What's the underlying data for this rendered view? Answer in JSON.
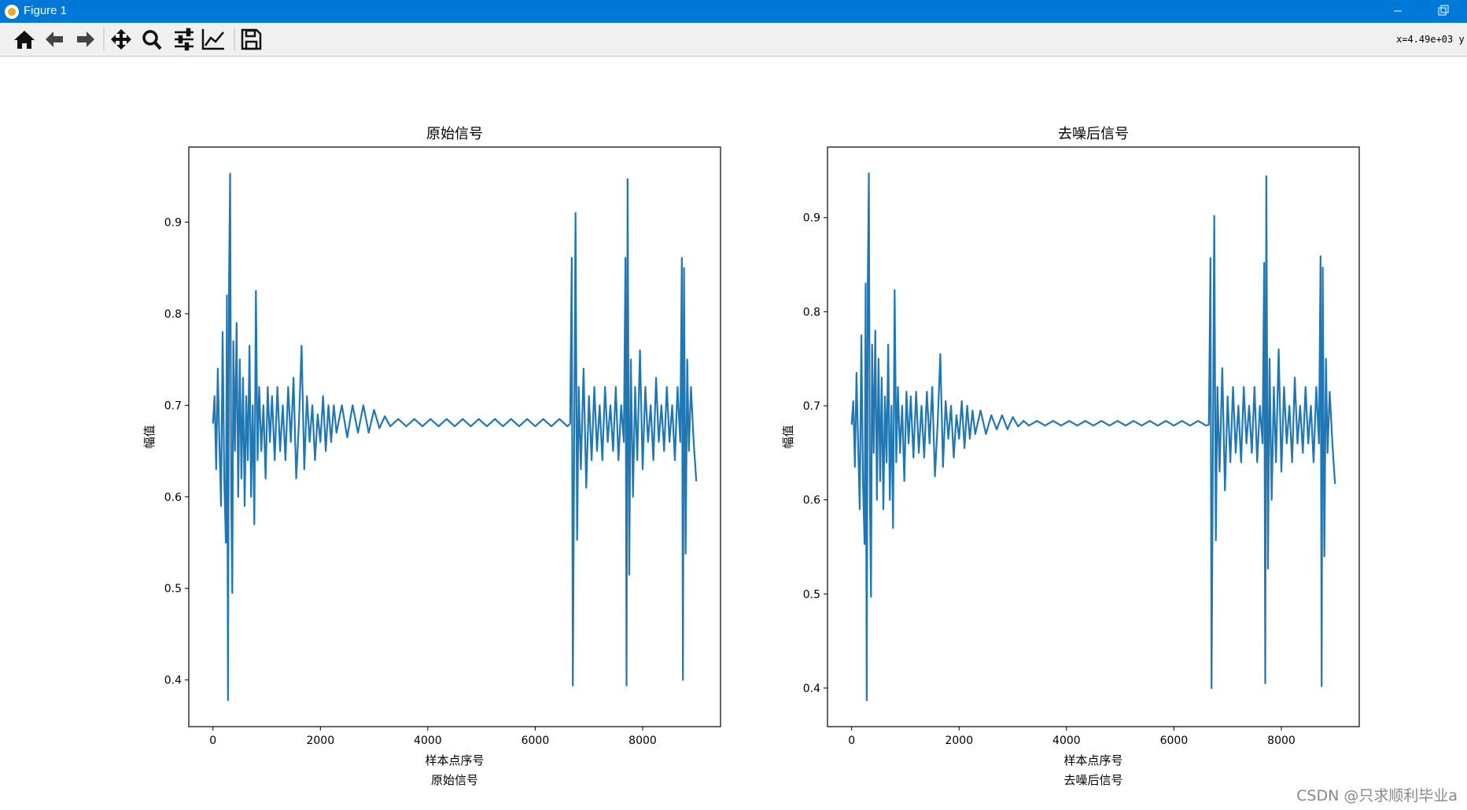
{
  "window": {
    "title": "Figure 1",
    "status": "x=4.49e+03 y"
  },
  "watermark": "CSDN @只求顺利毕业a",
  "chart_data": [
    {
      "type": "line",
      "title": "原始信号",
      "xlabel": "样本点序号",
      "ylabel": "幅值",
      "caption": "原始信号",
      "color": "#1f77b4",
      "xlim": [
        -450,
        9450
      ],
      "ylim": [
        0.349,
        0.982
      ],
      "xticks": [
        0,
        2000,
        4000,
        6000,
        8000
      ],
      "yticks": [
        0.4,
        0.5,
        0.6,
        0.7,
        0.8,
        0.9
      ],
      "x": [
        0,
        30,
        60,
        90,
        120,
        150,
        180,
        210,
        240,
        260,
        280,
        300,
        320,
        340,
        360,
        380,
        410,
        440,
        470,
        500,
        530,
        560,
        590,
        620,
        650,
        680,
        710,
        740,
        770,
        800,
        830,
        860,
        900,
        940,
        980,
        1020,
        1060,
        1100,
        1150,
        1200,
        1250,
        1300,
        1350,
        1400,
        1450,
        1500,
        1550,
        1600,
        1650,
        1700,
        1750,
        1800,
        1850,
        1900,
        1950,
        2000,
        2050,
        2100,
        2150,
        2200,
        2250,
        2300,
        2400,
        2500,
        2600,
        2700,
        2800,
        2900,
        3000,
        3100,
        3200,
        3300,
        3450,
        3600,
        3750,
        3900,
        4050,
        4200,
        4350,
        4500,
        4650,
        4800,
        4950,
        5100,
        5250,
        5400,
        5550,
        5700,
        5850,
        6000,
        6150,
        6300,
        6450,
        6600,
        6650,
        6680,
        6700,
        6730,
        6750,
        6780,
        6810,
        6850,
        6900,
        6950,
        7000,
        7050,
        7100,
        7150,
        7200,
        7250,
        7300,
        7350,
        7400,
        7450,
        7500,
        7550,
        7600,
        7650,
        7680,
        7700,
        7720,
        7750,
        7780,
        7820,
        7860,
        7900,
        7950,
        8000,
        8050,
        8100,
        8150,
        8200,
        8250,
        8300,
        8350,
        8400,
        8450,
        8500,
        8550,
        8600,
        8650,
        8700,
        8730,
        8750,
        8770,
        8800,
        8830,
        8860,
        8900,
        8950,
        8999
      ],
      "values": [
        0.68,
        0.71,
        0.63,
        0.74,
        0.66,
        0.59,
        0.78,
        0.62,
        0.55,
        0.82,
        0.378,
        0.84,
        0.953,
        0.6,
        0.495,
        0.77,
        0.65,
        0.79,
        0.6,
        0.75,
        0.62,
        0.73,
        0.59,
        0.71,
        0.64,
        0.765,
        0.6,
        0.7,
        0.57,
        0.825,
        0.64,
        0.72,
        0.65,
        0.7,
        0.62,
        0.72,
        0.66,
        0.71,
        0.64,
        0.72,
        0.65,
        0.7,
        0.64,
        0.72,
        0.66,
        0.73,
        0.62,
        0.68,
        0.765,
        0.63,
        0.71,
        0.66,
        0.7,
        0.64,
        0.69,
        0.66,
        0.71,
        0.65,
        0.7,
        0.66,
        0.7,
        0.67,
        0.7,
        0.665,
        0.7,
        0.67,
        0.7,
        0.67,
        0.695,
        0.675,
        0.688,
        0.677,
        0.685,
        0.677,
        0.685,
        0.677,
        0.685,
        0.677,
        0.685,
        0.677,
        0.685,
        0.677,
        0.685,
        0.677,
        0.685,
        0.677,
        0.685,
        0.677,
        0.685,
        0.677,
        0.685,
        0.677,
        0.685,
        0.677,
        0.68,
        0.861,
        0.394,
        0.7,
        0.91,
        0.553,
        0.72,
        0.63,
        0.74,
        0.61,
        0.71,
        0.64,
        0.72,
        0.65,
        0.7,
        0.64,
        0.72,
        0.66,
        0.7,
        0.65,
        0.72,
        0.64,
        0.7,
        0.66,
        0.861,
        0.394,
        0.947,
        0.515,
        0.75,
        0.6,
        0.72,
        0.64,
        0.76,
        0.63,
        0.72,
        0.66,
        0.7,
        0.64,
        0.73,
        0.66,
        0.7,
        0.65,
        0.72,
        0.66,
        0.7,
        0.64,
        0.72,
        0.66,
        0.861,
        0.4,
        0.85,
        0.538,
        0.75,
        0.65,
        0.72,
        0.66,
        0.617
      ]
    },
    {
      "type": "line",
      "title": "去噪后信号",
      "xlabel": "样本点序号",
      "ylabel": "幅值",
      "caption": "去噪后信号",
      "color": "#1f77b4",
      "xlim": [
        -450,
        9450
      ],
      "ylim": [
        0.359,
        0.975
      ],
      "xticks": [
        0,
        2000,
        4000,
        6000,
        8000
      ],
      "yticks": [
        0.4,
        0.5,
        0.6,
        0.7,
        0.8,
        0.9
      ],
      "x": [
        0,
        30,
        60,
        90,
        120,
        150,
        180,
        210,
        240,
        260,
        280,
        300,
        320,
        340,
        360,
        380,
        410,
        440,
        470,
        500,
        530,
        560,
        590,
        620,
        650,
        680,
        710,
        740,
        770,
        800,
        830,
        860,
        900,
        940,
        980,
        1020,
        1060,
        1100,
        1150,
        1200,
        1250,
        1300,
        1350,
        1400,
        1450,
        1500,
        1550,
        1600,
        1650,
        1700,
        1750,
        1800,
        1850,
        1900,
        1950,
        2000,
        2050,
        2100,
        2150,
        2200,
        2250,
        2300,
        2400,
        2500,
        2600,
        2700,
        2800,
        2900,
        3000,
        3100,
        3200,
        3300,
        3450,
        3600,
        3750,
        3900,
        4050,
        4200,
        4350,
        4500,
        4650,
        4800,
        4950,
        5100,
        5250,
        5400,
        5550,
        5700,
        5850,
        6000,
        6150,
        6300,
        6450,
        6600,
        6650,
        6680,
        6700,
        6730,
        6750,
        6780,
        6810,
        6850,
        6900,
        6950,
        7000,
        7050,
        7100,
        7150,
        7200,
        7250,
        7300,
        7350,
        7400,
        7450,
        7500,
        7550,
        7600,
        7650,
        7680,
        7700,
        7720,
        7750,
        7780,
        7820,
        7860,
        7900,
        7950,
        8000,
        8050,
        8100,
        8150,
        8200,
        8250,
        8300,
        8350,
        8400,
        8450,
        8500,
        8550,
        8600,
        8650,
        8700,
        8730,
        8750,
        8770,
        8800,
        8830,
        8860,
        8900,
        8950,
        8999
      ],
      "values": [
        0.68,
        0.705,
        0.635,
        0.735,
        0.66,
        0.59,
        0.775,
        0.62,
        0.553,
        0.83,
        0.387,
        0.83,
        0.947,
        0.6,
        0.497,
        0.765,
        0.65,
        0.78,
        0.6,
        0.75,
        0.62,
        0.73,
        0.59,
        0.71,
        0.64,
        0.765,
        0.6,
        0.7,
        0.57,
        0.823,
        0.64,
        0.72,
        0.65,
        0.7,
        0.62,
        0.715,
        0.66,
        0.71,
        0.645,
        0.715,
        0.65,
        0.7,
        0.645,
        0.715,
        0.66,
        0.72,
        0.625,
        0.68,
        0.755,
        0.635,
        0.705,
        0.665,
        0.7,
        0.645,
        0.69,
        0.665,
        0.705,
        0.655,
        0.7,
        0.665,
        0.695,
        0.67,
        0.695,
        0.67,
        0.69,
        0.675,
        0.69,
        0.675,
        0.688,
        0.678,
        0.684,
        0.679,
        0.684,
        0.679,
        0.684,
        0.679,
        0.684,
        0.679,
        0.684,
        0.679,
        0.684,
        0.679,
        0.684,
        0.679,
        0.684,
        0.679,
        0.684,
        0.679,
        0.684,
        0.679,
        0.684,
        0.679,
        0.684,
        0.679,
        0.68,
        0.857,
        0.4,
        0.7,
        0.902,
        0.557,
        0.72,
        0.63,
        0.74,
        0.61,
        0.71,
        0.64,
        0.72,
        0.65,
        0.7,
        0.64,
        0.72,
        0.66,
        0.7,
        0.65,
        0.72,
        0.64,
        0.7,
        0.66,
        0.852,
        0.405,
        0.944,
        0.527,
        0.75,
        0.6,
        0.72,
        0.64,
        0.76,
        0.63,
        0.72,
        0.66,
        0.7,
        0.64,
        0.73,
        0.66,
        0.7,
        0.65,
        0.72,
        0.66,
        0.7,
        0.64,
        0.72,
        0.66,
        0.859,
        0.402,
        0.847,
        0.54,
        0.75,
        0.65,
        0.715,
        0.66,
        0.617
      ]
    }
  ]
}
